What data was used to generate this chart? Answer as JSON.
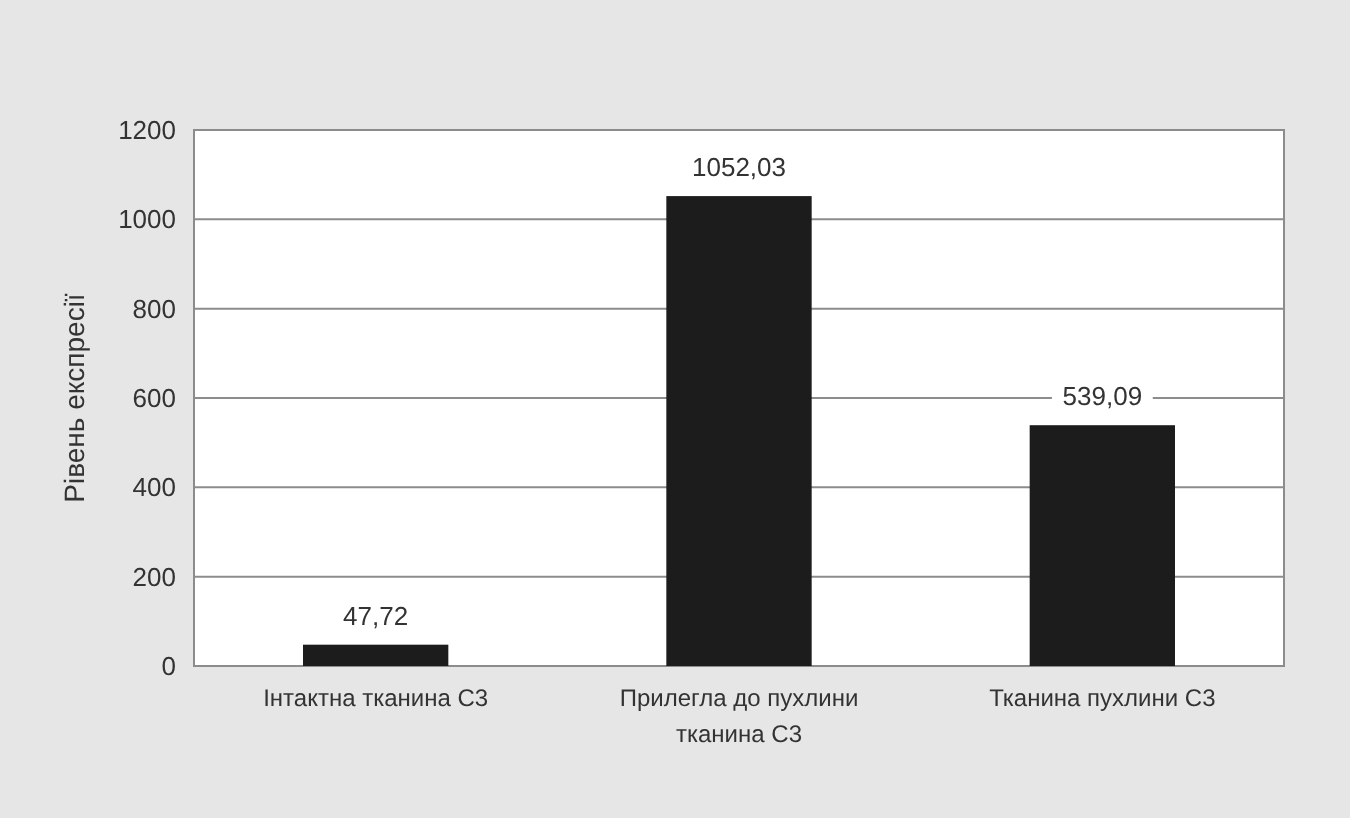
{
  "chart_data": {
    "type": "bar",
    "ylabel": "Рівень експресії",
    "categories": [
      "Інтактна тканина С3",
      "Прилегла до пухлини тканина С3",
      "Тканина пухлини С3"
    ],
    "values": [
      47.72,
      1052.03,
      539.09
    ],
    "value_labels": [
      "47,72",
      "1052,03",
      "539,09"
    ],
    "color": "#1c1c1c",
    "ylim": [
      0,
      1200
    ],
    "yticks": [
      0,
      200,
      400,
      600,
      800,
      1000,
      1200
    ],
    "grid": "y"
  }
}
